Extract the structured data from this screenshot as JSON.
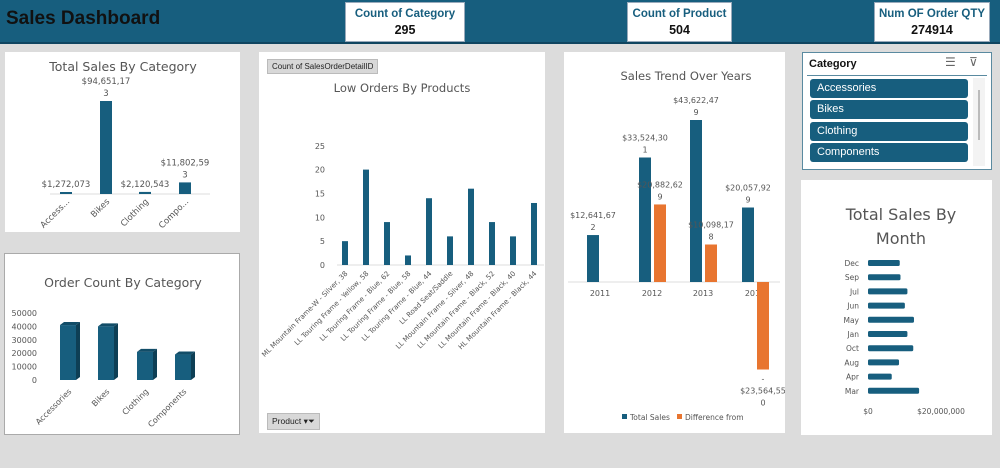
{
  "header": {
    "title": "Sales Dashboard"
  },
  "kpis": [
    {
      "label": "Count of Category",
      "value": "295"
    },
    {
      "label": "Count of Product",
      "value": "504"
    },
    {
      "label": "Num OF Order QTY",
      "value": "274914"
    }
  ],
  "colors": {
    "primary": "#175e7e",
    "accent": "#e87530",
    "header": "#175e7e"
  },
  "slicer": {
    "title": "Category",
    "items": [
      "Accessories",
      "Bikes",
      "Clothing",
      "Components"
    ],
    "icons": [
      "multi-select-icon",
      "clear-filter-icon"
    ]
  },
  "pivot_buttons": {
    "value_field": "Count of SalesOrderDetailID",
    "axis_field": "Product"
  },
  "chart_data": [
    {
      "type": "bar",
      "title": "Total Sales By Category",
      "categories": [
        "Access...",
        "Bikes",
        "Clothing",
        "Compo..."
      ],
      "values": [
        1272073,
        94651173,
        2120543,
        11802593
      ],
      "labels": [
        "$1,272,073",
        "$94,651,173",
        "$2,120,543",
        "$11,802,593"
      ]
    },
    {
      "type": "bar",
      "title": "Order Count By Category",
      "categories": [
        "Accessories",
        "Bikes",
        "Clothing",
        "Components"
      ],
      "values": [
        41000,
        40000,
        21000,
        19000
      ],
      "yticks": [
        "0",
        "10000",
        "20000",
        "30000",
        "40000",
        "50000"
      ],
      "ylim": [
        0,
        50000
      ]
    },
    {
      "type": "bar",
      "title": "Low Orders By Products",
      "categories": [
        "ML Mountain Frame-W - Silver, 38",
        "LL Touring Frame - Yellow, 58",
        "LL Touring Frame - Blue, 62",
        "LL Touring Frame - Blue, 58",
        "LL Touring Frame - Blue, 44",
        "LL Road Seat/Saddle",
        "LL Mountain Frame - Silver, 48",
        "LL Mountain Frame - Black, 52",
        "LL Mountain Frame - Black, 40",
        "HL Mountain Frame - Black, 44"
      ],
      "values": [
        5,
        20,
        9,
        2,
        14,
        6,
        16,
        9,
        6,
        13
      ],
      "yticks": [
        "0",
        "5",
        "10",
        "15",
        "20",
        "25"
      ],
      "ylim": [
        0,
        25
      ]
    },
    {
      "type": "bar",
      "title": "Sales Trend Over Years",
      "categories": [
        "2011",
        "2012",
        "2013",
        "2014"
      ],
      "series": [
        {
          "name": "Total Sales",
          "values": [
            12641672,
            33524301,
            43622479,
            20057929
          ],
          "labels": [
            "$12,641,672",
            "$33,524,301",
            "$43,622,479",
            "$20,057,929"
          ]
        },
        {
          "name": "Difference from",
          "values": [
            null,
            20882629,
            10098178,
            -23564550
          ],
          "labels": [
            "",
            "$20,882,629",
            "$10,098,178",
            "-$23,564,550"
          ]
        }
      ]
    },
    {
      "type": "bar",
      "orientation": "horizontal",
      "title": "Total Sales By Month",
      "categories": [
        "Dec",
        "Sep",
        "Jul",
        "Jun",
        "May",
        "Jan",
        "Oct",
        "Aug",
        "Apr",
        "Mar"
      ],
      "values": [
        8700000,
        8900000,
        10800000,
        10100000,
        12600000,
        10800000,
        12400000,
        8500000,
        6500000,
        14000000
      ],
      "xticks": [
        "$0",
        "$20,000,000"
      ]
    }
  ]
}
